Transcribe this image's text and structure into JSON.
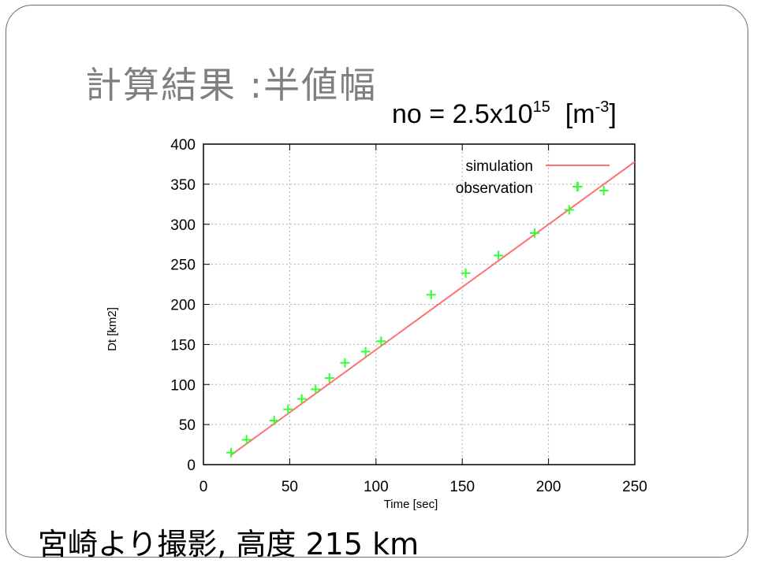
{
  "slide": {
    "title": "計算結果 :半値幅",
    "density_base": "no = 2.5x10",
    "density_exp": "15",
    "density_unit_open": "  [m",
    "density_unit_exp": "-3",
    "density_unit_close": "]",
    "caption": "宮崎より撮影, 高度 215 km"
  },
  "colors": {
    "simulation": "#ff7070",
    "observation": "#33ff33",
    "grid": "#b0b0b0",
    "title": "#7f7f7f"
  },
  "chart_data": {
    "type": "line",
    "xlabel": "Time [sec]",
    "ylabel": "Dt [km2]",
    "xlim": [
      0,
      250
    ],
    "ylim": [
      0,
      400
    ],
    "xticks": [
      0,
      50,
      100,
      150,
      200,
      250
    ],
    "yticks": [
      0,
      50,
      100,
      150,
      200,
      250,
      300,
      350,
      400
    ],
    "grid": true,
    "legend_position": "top-right",
    "series": [
      {
        "name": "simulation",
        "style": "line",
        "x": [
          16,
          250
        ],
        "y": [
          12,
          378
        ]
      },
      {
        "name": "observation",
        "style": "plus-markers",
        "x": [
          16,
          25,
          41,
          49,
          57,
          65,
          73,
          82,
          94,
          103,
          132,
          152,
          171,
          192,
          212,
          217,
          232
        ],
        "y": [
          15,
          31,
          55,
          69,
          82,
          94,
          108,
          127,
          141,
          154,
          212,
          239,
          261,
          289,
          318,
          347,
          342
        ]
      }
    ]
  }
}
